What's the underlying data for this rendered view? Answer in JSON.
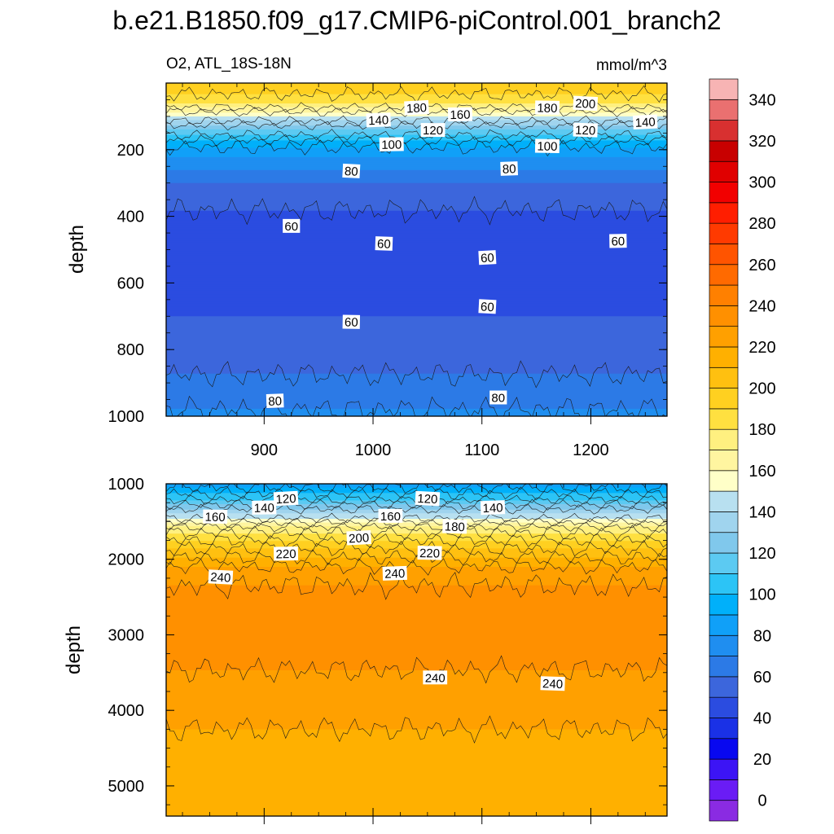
{
  "title": "b.e21.B1850.f09_g17.CMIP6-piControl.001_branch2",
  "variable_label": "O2, ATL_18S-18N",
  "units_label": "mmol/m^3",
  "colorbar": {
    "ticks": [
      "0",
      "20",
      "40",
      "60",
      "80",
      "100",
      "120",
      "140",
      "160",
      "180",
      "200",
      "220",
      "240",
      "260",
      "280",
      "300",
      "320",
      "340"
    ],
    "colors": [
      "#8a2be2",
      "#6a1cf5",
      "#3c14f5",
      "#0808f0",
      "#1a31e6",
      "#2b4ce0",
      "#3c66dc",
      "#2c7ae6",
      "#1f8ef0",
      "#10a0f8",
      "#00b0fa",
      "#2cc4f6",
      "#5ccaf2",
      "#80c8ec",
      "#a0d4ee",
      "#b8e0f0",
      "#ffffc8",
      "#fff5a0",
      "#fff080",
      "#ffe040",
      "#ffd020",
      "#ffc010",
      "#ffb000",
      "#ffa000",
      "#ff9000",
      "#ff8000",
      "#ff6a00",
      "#ff5400",
      "#ff3a00",
      "#ff1e00",
      "#f20000",
      "#e00000",
      "#c80000",
      "#d83030",
      "#ea7070",
      "#f7b4b4"
    ]
  },
  "chart_data": [
    {
      "type": "contour",
      "panel": "upper",
      "title": "O2, ATL_18S-18N",
      "units": "mmol/m^3",
      "xlabel": "",
      "ylabel": "depth",
      "xlim": [
        810,
        1270
      ],
      "ylim": [
        1000,
        0
      ],
      "xticks": [
        900,
        1000,
        1100,
        1200
      ],
      "yticks": [
        200,
        400,
        600,
        800,
        1000
      ],
      "profile": {
        "depth": [
          20,
          60,
          100,
          140,
          180,
          220,
          260,
          300,
          400,
          500,
          600,
          700,
          800,
          900,
          1000
        ],
        "o2": [
          205,
          190,
          160,
          130,
          105,
          90,
          80,
          70,
          58,
          55,
          56,
          60,
          64,
          72,
          82
        ]
      },
      "contour_labels": [
        {
          "value": "180",
          "x": 1040,
          "y": 75
        },
        {
          "value": "160",
          "x": 1080,
          "y": 95
        },
        {
          "value": "180",
          "x": 1160,
          "y": 75
        },
        {
          "value": "200",
          "x": 1195,
          "y": 62
        },
        {
          "value": "140",
          "x": 1005,
          "y": 112
        },
        {
          "value": "120",
          "x": 1055,
          "y": 142
        },
        {
          "value": "120",
          "x": 1195,
          "y": 142
        },
        {
          "value": "140",
          "x": 1250,
          "y": 118
        },
        {
          "value": "100",
          "x": 1017,
          "y": 185
        },
        {
          "value": "100",
          "x": 1160,
          "y": 190
        },
        {
          "value": "80",
          "x": 980,
          "y": 265
        },
        {
          "value": "80",
          "x": 1125,
          "y": 258
        },
        {
          "value": "60",
          "x": 925,
          "y": 430
        },
        {
          "value": "60",
          "x": 1010,
          "y": 483
        },
        {
          "value": "60",
          "x": 1105,
          "y": 525
        },
        {
          "value": "60",
          "x": 1225,
          "y": 475
        },
        {
          "value": "60",
          "x": 980,
          "y": 718
        },
        {
          "value": "60",
          "x": 1105,
          "y": 672
        },
        {
          "value": "80",
          "x": 910,
          "y": 955
        },
        {
          "value": "80",
          "x": 1115,
          "y": 945
        }
      ]
    },
    {
      "type": "contour",
      "panel": "lower",
      "xlabel": "",
      "ylabel": "depth",
      "xlim": [
        810,
        1270
      ],
      "ylim": [
        5400,
        1000
      ],
      "yticks": [
        1000,
        2000,
        3000,
        4000,
        5000
      ],
      "profile": {
        "depth": [
          1000,
          1200,
          1400,
          1600,
          1800,
          2000,
          2200,
          2500,
          2800,
          3200,
          3600,
          4000,
          4500,
          5000,
          5400
        ],
        "o2": [
          95,
          118,
          150,
          185,
          205,
          222,
          238,
          242,
          246,
          244,
          238,
          232,
          228,
          226,
          225
        ]
      },
      "contour_labels": [
        {
          "value": "120",
          "x": 920,
          "y": 1200
        },
        {
          "value": "140",
          "x": 900,
          "y": 1320
        },
        {
          "value": "160",
          "x": 855,
          "y": 1440
        },
        {
          "value": "120",
          "x": 1050,
          "y": 1200
        },
        {
          "value": "140",
          "x": 1110,
          "y": 1320
        },
        {
          "value": "160",
          "x": 1016,
          "y": 1430
        },
        {
          "value": "180",
          "x": 1075,
          "y": 1570
        },
        {
          "value": "200",
          "x": 987,
          "y": 1720
        },
        {
          "value": "220",
          "x": 920,
          "y": 1930
        },
        {
          "value": "220",
          "x": 1052,
          "y": 1920
        },
        {
          "value": "240",
          "x": 860,
          "y": 2240
        },
        {
          "value": "240",
          "x": 1020,
          "y": 2190
        },
        {
          "value": "240",
          "x": 1057,
          "y": 3570
        },
        {
          "value": "240",
          "x": 1165,
          "y": 3650
        }
      ]
    }
  ]
}
